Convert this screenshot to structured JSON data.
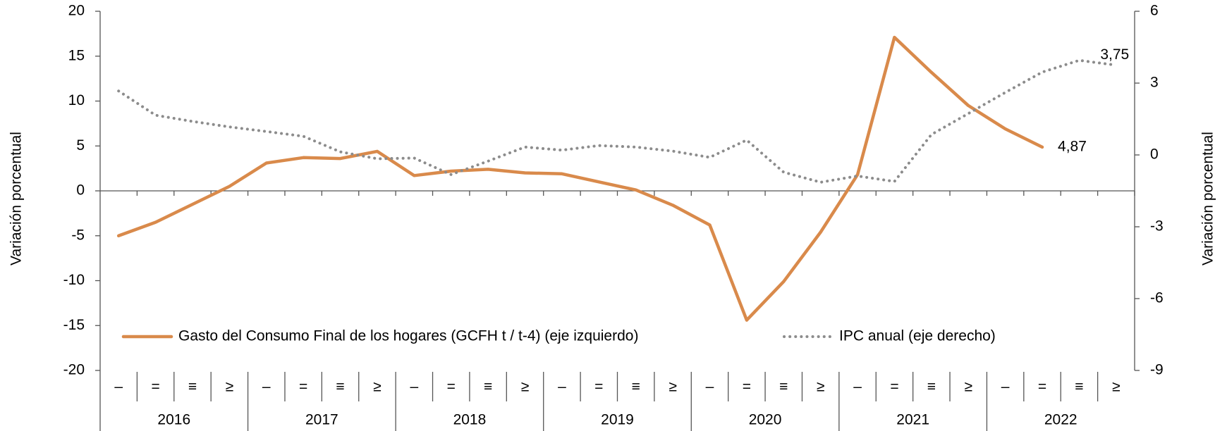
{
  "chart_data": {
    "type": "line",
    "y_label": "Variación porcentual",
    "y2_label": "Variación porcentual",
    "categories": [
      "–",
      "=",
      "≡",
      "≥",
      "–",
      "=",
      "≡",
      "≥",
      "–",
      "=",
      "≡",
      "≥",
      "–",
      "=",
      "≡",
      "≥",
      "–",
      "=",
      "≡",
      "≥",
      "–",
      "=",
      "≡",
      "≥",
      "–",
      "=",
      "≡",
      "≥"
    ],
    "groups": [
      "2016",
      "2017",
      "2018",
      "2019",
      "2020",
      "2021",
      "2022"
    ],
    "series": [
      {
        "name": "Gasto del Consumo Final de los hogares (GCFH t / t-4)  (eje izquierdo)",
        "color": "#d98a4b",
        "style": "solid",
        "values": [
          -5.0,
          -3.5,
          -1.5,
          0.5,
          3.1,
          3.7,
          3.6,
          4.4,
          1.7,
          2.2,
          2.4,
          2.0,
          1.9,
          1.0,
          0.1,
          -1.6,
          -3.8,
          -14.4,
          -10.1,
          -4.6,
          1.8,
          17.1,
          13.2,
          9.5,
          6.9,
          4.87,
          null,
          null
        ],
        "value_labels": [
          null,
          null,
          null,
          null,
          null,
          null,
          null,
          null,
          null,
          null,
          null,
          null,
          null,
          null,
          null,
          null,
          null,
          null,
          null,
          null,
          null,
          null,
          null,
          null,
          null,
          "4,87",
          null,
          null
        ]
      },
      {
        "name": "IPC anual (eje derecho)",
        "color": "#8c8c8c",
        "style": "dotted",
        "axis": "y2",
        "values": [
          2.67,
          1.66,
          1.4,
          1.17,
          0.98,
          0.78,
          0.13,
          -0.16,
          -0.13,
          -0.82,
          -0.26,
          0.33,
          0.2,
          0.39,
          0.33,
          0.16,
          -0.1,
          0.62,
          -0.72,
          -1.14,
          -0.88,
          -1.11,
          0.85,
          1.73,
          2.61,
          3.46,
          3.95,
          3.75
        ],
        "value_labels": [
          null,
          null,
          null,
          null,
          null,
          null,
          null,
          null,
          null,
          null,
          null,
          null,
          null,
          null,
          null,
          null,
          null,
          null,
          null,
          null,
          null,
          null,
          null,
          null,
          null,
          null,
          null,
          "3,75"
        ]
      }
    ],
    "ylim": [
      -20,
      20
    ],
    "yticks": [
      -20,
      -15,
      -10,
      -5,
      0,
      5,
      10,
      15,
      20
    ],
    "y2lim": [
      -9,
      6
    ],
    "y2ticks": [
      -9,
      -6,
      -3,
      0,
      3,
      6
    ],
    "grid": false
  }
}
